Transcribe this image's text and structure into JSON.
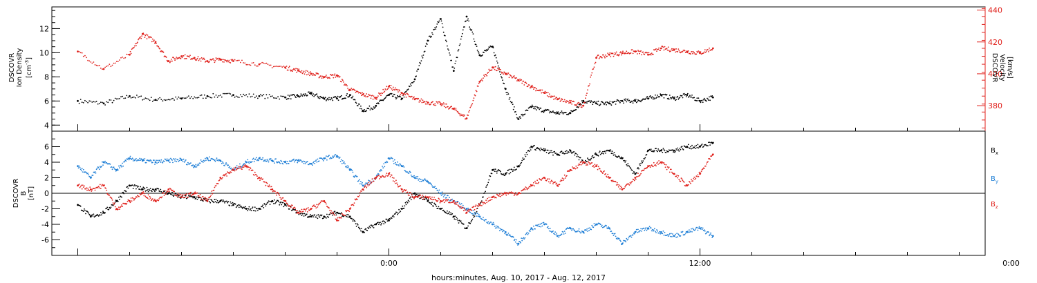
{
  "chart_data": [
    {
      "type": "scatter",
      "panel": "top",
      "left_axis": {
        "label_lines": [
          "DSCOVR",
          "Ion Density"
        ],
        "unit_html": "[cm",
        "unit_sup": "-3",
        "unit_tail": "]",
        "ylim": [
          3.5,
          13.8
        ],
        "ticks": [
          4,
          6,
          8,
          10,
          12
        ],
        "tick_labels": [
          "4",
          "6",
          "8",
          "10",
          "12"
        ],
        "color": "#000000"
      },
      "right_axis": {
        "label_lines": [
          "DSCOVR",
          "Velocity",
          "[km/s]"
        ],
        "ylim": [
          364,
          442
        ],
        "ticks": [
          380,
          400,
          420,
          440
        ],
        "tick_labels": [
          "380",
          "400",
          "420",
          "440"
        ],
        "color": "#e0201b"
      },
      "series": [
        {
          "color": "#000000",
          "axis": "left",
          "x": [
            -12.0,
            -11.0,
            -10.0,
            -9.0,
            -8.0,
            -7.0,
            -6.0,
            -5.0,
            -4.0,
            -3.5,
            -3.0,
            -2.5,
            -2.0,
            -1.5,
            -1.0,
            -0.5,
            0.0,
            0.5,
            1.0,
            1.5,
            2.0,
            2.5,
            3.0,
            3.5,
            4.0,
            4.5,
            5.0,
            5.5,
            6.0,
            6.5,
            7.0,
            7.5,
            8.0,
            8.5,
            9.0,
            9.5,
            10.0,
            10.5,
            11.0,
            11.5,
            12.0,
            12.5
          ],
          "y": [
            6.0,
            5.8,
            6.4,
            6.1,
            6.2,
            6.4,
            6.5,
            6.4,
            6.3,
            6.4,
            6.6,
            6.2,
            6.2,
            6.5,
            5.2,
            5.6,
            6.5,
            6.2,
            7.8,
            11.0,
            12.8,
            8.5,
            13.0,
            9.8,
            10.5,
            7.0,
            4.5,
            5.5,
            5.2,
            5.0,
            5.0,
            6.0,
            5.8,
            5.8,
            6.0,
            6.0,
            6.2,
            6.5,
            6.2,
            6.5,
            6.0,
            6.3
          ]
        },
        {
          "color": "#e0201b",
          "axis": "right",
          "x": [
            -12.0,
            -11.0,
            -10.0,
            -9.5,
            -9.0,
            -8.5,
            -8.0,
            -7.5,
            -7.0,
            -6.5,
            -6.0,
            -5.0,
            -4.0,
            -3.5,
            -3.0,
            -2.5,
            -2.0,
            -1.5,
            -1.0,
            -0.5,
            0.0,
            0.5,
            1.0,
            1.5,
            2.0,
            2.5,
            3.0,
            3.5,
            4.0,
            4.5,
            5.0,
            5.5,
            6.0,
            6.5,
            7.0,
            7.5,
            8.0,
            8.5,
            9.0,
            9.5,
            10.0,
            10.5,
            11.0,
            11.5,
            12.0,
            12.5
          ],
          "y": [
            414,
            403,
            412,
            425,
            420,
            408,
            411,
            410,
            408,
            409,
            408,
            406,
            404,
            402,
            400,
            398,
            399,
            390,
            387,
            385,
            392,
            388,
            384,
            382,
            381,
            378,
            372,
            395,
            404,
            400,
            396,
            392,
            388,
            384,
            382,
            380,
            410,
            412,
            413,
            414,
            412,
            416,
            415,
            414,
            413,
            416
          ]
        }
      ]
    },
    {
      "type": "scatter",
      "panel": "bottom",
      "left_axis": {
        "label_lines": [
          "DSCOVR",
          "B"
        ],
        "unit": "[nT]",
        "ylim": [
          -8,
          8
        ],
        "ticks": [
          -6,
          -4,
          -2,
          0,
          2,
          4,
          6
        ],
        "tick_labels": [
          "-6",
          "-4",
          "-2",
          "0",
          "2",
          "4",
          "6"
        ],
        "zero_line": true
      },
      "series": [
        {
          "name": "B",
          "subscript": "x",
          "color": "#000000",
          "x": [
            -12.0,
            -11.5,
            -11.0,
            -10.5,
            -10.0,
            -9.5,
            -9.0,
            -8.5,
            -8.0,
            -7.5,
            -7.0,
            -6.5,
            -6.0,
            -5.5,
            -5.0,
            -4.5,
            -4.0,
            -3.5,
            -3.0,
            -2.5,
            -2.0,
            -1.5,
            -1.0,
            -0.5,
            0.0,
            0.5,
            1.0,
            1.5,
            2.0,
            2.5,
            3.0,
            3.5,
            4.0,
            4.5,
            5.0,
            5.5,
            6.0,
            6.5,
            7.0,
            7.5,
            8.0,
            8.5,
            9.0,
            9.5,
            10.0,
            10.5,
            11.0,
            11.5,
            12.0,
            12.5
          ],
          "y": [
            -1.5,
            -3.0,
            -2.5,
            -1.0,
            1.0,
            0.5,
            0.5,
            0.0,
            -0.5,
            -0.5,
            -1.0,
            -1.0,
            -1.5,
            -2.0,
            -2.0,
            -1.0,
            -1.5,
            -2.5,
            -3.0,
            -3.0,
            -2.5,
            -3.0,
            -5.0,
            -4.0,
            -3.5,
            -2.0,
            0.0,
            -1.0,
            -2.0,
            -3.0,
            -4.5,
            -1.5,
            3.0,
            2.5,
            3.5,
            6.0,
            5.5,
            5.0,
            5.5,
            4.0,
            5.0,
            5.5,
            4.5,
            2.5,
            5.5,
            5.5,
            5.5,
            6.0,
            6.0,
            6.5
          ]
        },
        {
          "name": "B",
          "subscript": "y",
          "color": "#1f7fd6",
          "x": [
            -12.0,
            -11.5,
            -11.0,
            -10.5,
            -10.0,
            -9.5,
            -9.0,
            -8.5,
            -8.0,
            -7.5,
            -7.0,
            -6.5,
            -6.0,
            -5.5,
            -5.0,
            -4.5,
            -4.0,
            -3.5,
            -3.0,
            -2.5,
            -2.0,
            -1.5,
            -1.0,
            -0.5,
            0.0,
            0.5,
            1.0,
            1.5,
            2.0,
            2.5,
            3.0,
            3.5,
            4.0,
            4.5,
            5.0,
            5.5,
            6.0,
            6.5,
            7.0,
            7.5,
            8.0,
            8.5,
            9.0,
            9.5,
            10.0,
            10.5,
            11.0,
            11.5,
            12.0,
            12.5
          ],
          "y": [
            3.5,
            2.0,
            4.0,
            3.0,
            4.5,
            4.2,
            4.0,
            4.2,
            4.3,
            3.5,
            4.5,
            4.2,
            3.0,
            4.0,
            4.5,
            4.2,
            4.0,
            4.2,
            3.8,
            4.5,
            4.8,
            3.0,
            1.0,
            2.0,
            4.5,
            3.5,
            2.0,
            1.5,
            0.0,
            -1.0,
            -2.0,
            -3.0,
            -4.0,
            -5.0,
            -6.5,
            -4.5,
            -4.0,
            -5.5,
            -4.5,
            -5.0,
            -4.0,
            -4.5,
            -6.5,
            -5.0,
            -4.5,
            -5.0,
            -5.5,
            -5.0,
            -4.5,
            -5.5
          ]
        },
        {
          "name": "B",
          "subscript": "z",
          "color": "#e0201b",
          "x": [
            -12.0,
            -11.5,
            -11.0,
            -10.5,
            -10.0,
            -9.5,
            -9.0,
            -8.5,
            -8.0,
            -7.5,
            -7.0,
            -6.5,
            -6.0,
            -5.5,
            -5.0,
            -4.5,
            -4.0,
            -3.5,
            -3.0,
            -2.5,
            -2.0,
            -1.5,
            -1.0,
            -0.5,
            0.0,
            0.5,
            1.0,
            1.5,
            2.0,
            2.5,
            3.0,
            3.5,
            4.0,
            4.5,
            5.0,
            5.5,
            6.0,
            6.5,
            7.0,
            7.5,
            8.0,
            8.5,
            9.0,
            9.5,
            10.0,
            10.5,
            11.0,
            11.5,
            12.0,
            12.5
          ],
          "y": [
            1.0,
            0.5,
            1.0,
            -2.0,
            -1.0,
            0.0,
            -1.0,
            0.5,
            -0.5,
            0.0,
            -1.0,
            2.0,
            3.0,
            3.5,
            2.0,
            0.5,
            -1.0,
            -2.5,
            -2.0,
            -1.0,
            -3.5,
            -2.0,
            0.5,
            2.0,
            2.5,
            0.5,
            -0.5,
            -0.5,
            -1.0,
            -1.0,
            -2.5,
            -1.5,
            -0.5,
            0.0,
            0.0,
            1.0,
            2.0,
            1.0,
            3.0,
            4.0,
            3.5,
            2.0,
            0.5,
            2.0,
            3.5,
            4.0,
            2.5,
            1.0,
            2.5,
            5.0
          ]
        }
      ]
    }
  ],
  "x_axis": {
    "range_hours": [
      -13,
      23
    ],
    "ticks": [
      0,
      12,
      24
    ],
    "tick_labels": [
      "0:00",
      "12:00",
      "0:00"
    ],
    "label": "hours:minutes, Aug. 10, 2017 - Aug. 12, 2017"
  }
}
